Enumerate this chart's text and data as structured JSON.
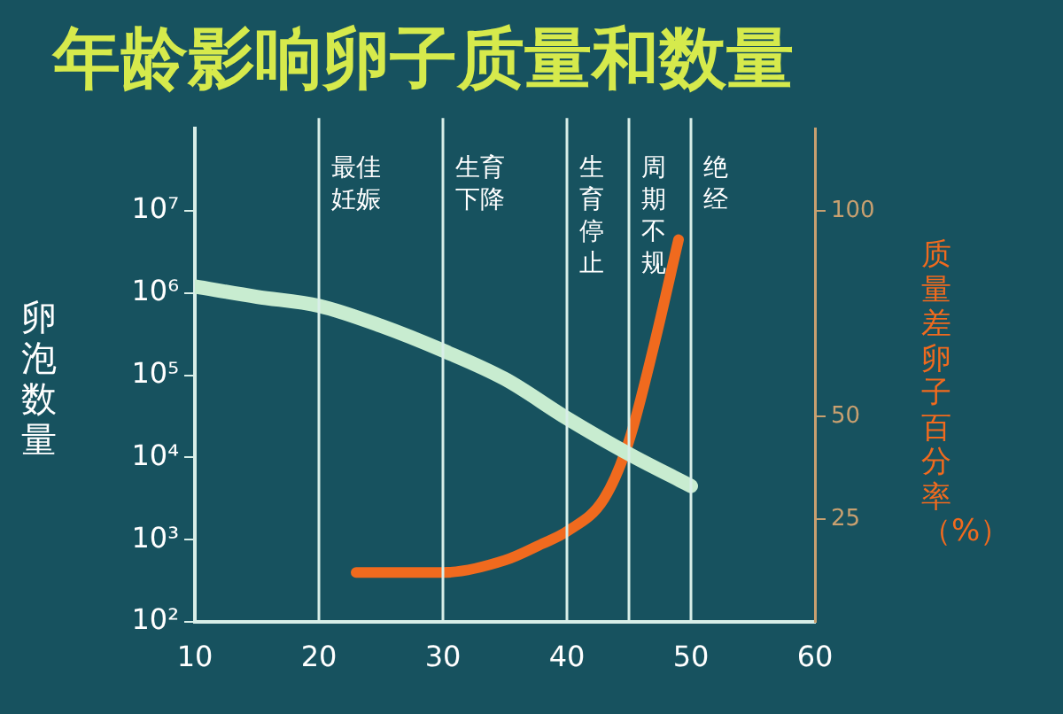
{
  "chart_data": {
    "type": "line",
    "title": "年龄影响卵子质量和数量",
    "ylabel": "卵泡数量",
    "y2label": "质量差卵子百分率（%）",
    "log": "y",
    "grid": false,
    "legend": false,
    "marker": "none",
    "line_style": "solid",
    "xlim": [
      10,
      60
    ],
    "xticks": [
      10,
      20,
      30,
      40,
      50,
      60
    ],
    "ylim": [
      100,
      100000000
    ],
    "yticks": [
      {
        "value": 100,
        "label": "10²"
      },
      {
        "value": 1000,
        "label": "10³"
      },
      {
        "value": 10000,
        "label": "10⁴"
      },
      {
        "value": 100000,
        "label": "10⁵"
      },
      {
        "value": 1000000,
        "label": "10⁶"
      },
      {
        "value": 10000000,
        "label": "10⁷"
      }
    ],
    "y2lim": [
      0,
      120
    ],
    "y2ticks": [
      25,
      50,
      100
    ],
    "series": [
      {
        "color": "#c8ecd0",
        "x": [
          10,
          15,
          20,
          25,
          30,
          35,
          40,
          45,
          50
        ],
        "values": [
          1200000,
          900000,
          700000,
          400000,
          200000,
          90000,
          30000,
          11000,
          4500
        ]
      },
      {
        "color": "#f06a1e",
        "axis": "y2",
        "x": [
          23,
          30,
          35,
          38,
          40,
          43,
          45,
          47,
          49
        ],
        "values": [
          12,
          12,
          15,
          19,
          22,
          30,
          44,
          67,
          93
        ]
      }
    ],
    "ref_lines": [
      {
        "axis": "x",
        "value": 20,
        "label": "最佳妊娠",
        "color": "#d8eee8"
      },
      {
        "axis": "x",
        "value": 30,
        "label": "生育下降",
        "color": "#d8eee8"
      },
      {
        "axis": "x",
        "value": 40,
        "label": "生育停止",
        "color": "#d8eee8"
      },
      {
        "axis": "x",
        "value": 45,
        "label": "周期不规",
        "color": "#d8eee8"
      },
      {
        "axis": "x",
        "value": 50,
        "label": "绝经",
        "color": "#d8eee8"
      }
    ]
  }
}
